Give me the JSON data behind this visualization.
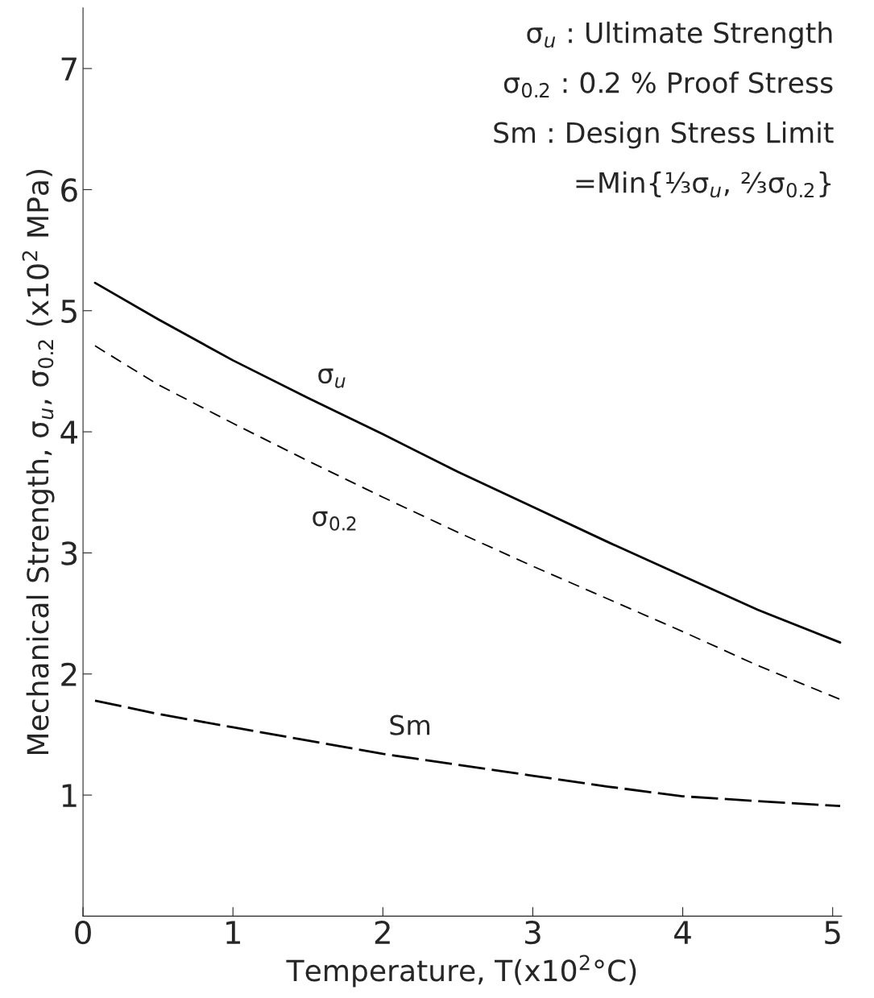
{
  "chart_data": {
    "type": "line",
    "xlabel": "Temperature, T(x10$^{2}$°C)",
    "ylabel": "Mechanical Strength, σ$_{u}$, σ$_{0.2}$ (x10$^{2}$ MPa)",
    "x": [
      0.08,
      0.5,
      1,
      1.5,
      2,
      2.5,
      3,
      3.5,
      4,
      4.5,
      5.05
    ],
    "series": [
      {
        "name": "σ$_{u}$",
        "color": "#000000",
        "line_style": "solid",
        "values": [
          5.23,
          4.93,
          4.59,
          4.28,
          3.98,
          3.67,
          3.38,
          3.09,
          2.81,
          2.53,
          2.26
        ]
      },
      {
        "name": "σ$_{0.2}$",
        "color": "#000000",
        "line_style": "dashed",
        "values": [
          4.71,
          4.39,
          4.07,
          3.76,
          3.46,
          3.17,
          2.89,
          2.62,
          2.35,
          2.07,
          1.79
        ]
      },
      {
        "name": "Sm",
        "color": "#000000",
        "line_style": "dashed",
        "values": [
          1.78,
          1.67,
          1.56,
          1.45,
          1.34,
          1.25,
          1.16,
          1.07,
          0.99,
          0.95,
          0.91
        ]
      }
    ],
    "annotations": [
      "σ$_{u}$ : Ultimate Strength",
      "σ$_{0.2}$ : 0.2 % Proof Stress",
      "Sm : Design Stress Limit",
      "=Min{⅓σ$_{u}$, ⅔σ$_{0.2}$}"
    ],
    "xlim": [
      0,
      5.06
    ],
    "ylim": [
      0,
      7.5
    ],
    "xticks": [
      0,
      1,
      2,
      3,
      4,
      5
    ],
    "yticks": [
      1,
      2,
      3,
      4,
      5,
      6,
      7
    ],
    "grid": false,
    "legend": false,
    "marker": "none"
  }
}
